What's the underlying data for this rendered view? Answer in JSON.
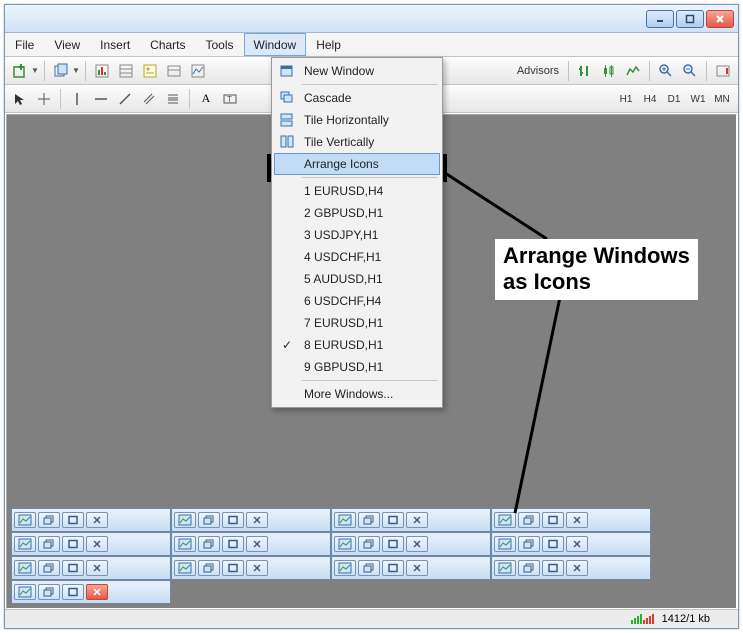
{
  "window_controls": {
    "min_title": "Minimize",
    "max_title": "Maximize",
    "close_title": "Close"
  },
  "menu": {
    "file": "File",
    "view": "View",
    "insert": "Insert",
    "charts": "Charts",
    "tools": "Tools",
    "window": "Window",
    "help": "Help"
  },
  "toolbar_right_label": "Advisors",
  "timeframes": [
    "H1",
    "H4",
    "D1",
    "W1",
    "MN"
  ],
  "dropdown": {
    "new_window": "New Window",
    "cascade": "Cascade",
    "tile_h": "Tile Horizontally",
    "tile_v": "Tile Vertically",
    "arrange": "Arrange Icons",
    "w1": "1 EURUSD,H4",
    "w2": "2 GBPUSD,H1",
    "w3": "3 USDJPY,H1",
    "w4": "4 USDCHF,H1",
    "w5": "5 AUDUSD,H1",
    "w6": "6 USDCHF,H4",
    "w7": "7 EURUSD,H1",
    "w8": "8 EURUSD,H1",
    "w9": "9 GBPUSD,H1",
    "more": "More Windows..."
  },
  "callout_line1": "Arrange Windows",
  "callout_line2": "as Icons",
  "status_text": "1412/1 kb",
  "colors": {
    "workspace": "#808080",
    "highlight": "#c2dbf7",
    "close_btn": "#e35947",
    "accent": "#6a97cc"
  },
  "mini_grid": {
    "rows": 4,
    "cols_row0": 1,
    "cols_other": 4,
    "row0_has_red_close": true
  },
  "annotation": {
    "highlight_box": {
      "top_pct": -1,
      "note": "drawn around Arrange Icons item"
    },
    "line_from_to": "box lower-right to callout left and to mini-windows area"
  }
}
